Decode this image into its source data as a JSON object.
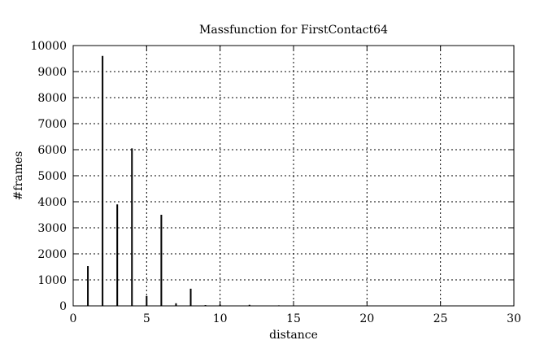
{
  "chart_data": {
    "type": "bar",
    "title": "Massfunction for FirstContact64",
    "xlabel": "distance",
    "ylabel": "#frames",
    "xlim": [
      0,
      30
    ],
    "ylim": [
      0,
      10000
    ],
    "xticks": [
      0,
      5,
      10,
      15,
      20,
      25,
      30
    ],
    "yticks": [
      0,
      1000,
      2000,
      3000,
      4000,
      5000,
      6000,
      7000,
      8000,
      9000,
      10000
    ],
    "grid": true,
    "x": [
      1,
      2,
      3,
      4,
      5,
      6,
      7,
      8,
      9,
      10,
      12,
      14
    ],
    "values": [
      1530,
      9600,
      3900,
      6050,
      380,
      3500,
      100,
      660,
      30,
      50,
      40,
      20
    ]
  }
}
